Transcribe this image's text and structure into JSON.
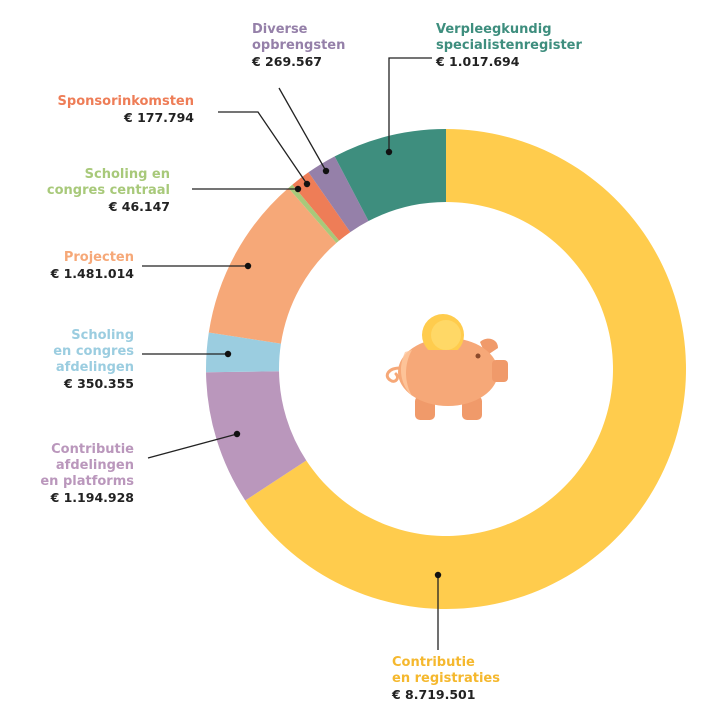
{
  "chart_data": {
    "type": "pie",
    "donut": true,
    "title": "",
    "legend": "callout-labels",
    "slices": [
      {
        "label_lines": [
          "Contributie",
          "en registraties"
        ],
        "value_text": "€ 8.719.501",
        "value": 8719501,
        "color": "#FFCC4D"
      },
      {
        "label_lines": [
          "Contributie",
          "afdelingen",
          "en platforms"
        ],
        "value_text": "€ 1.194.928",
        "value": 1194928,
        "color": "#BA97BC"
      },
      {
        "label_lines": [
          "Scholing",
          "en congres",
          "afdelingen"
        ],
        "value_text": "€ 350.355",
        "value": 350355,
        "color": "#9BCDE0"
      },
      {
        "label_lines": [
          "Projecten"
        ],
        "value_text": "€ 1.481.014",
        "value": 1481014,
        "color": "#F6A878"
      },
      {
        "label_lines": [
          "Scholing en",
          "congres centraal"
        ],
        "value_text": "€ 46.147",
        "value": 46147,
        "color": "#A8C97A"
      },
      {
        "label_lines": [
          "Sponsorinkomsten"
        ],
        "value_text": "€ 177.794",
        "value": 177794,
        "color": "#EE7D57"
      },
      {
        "label_lines": [
          "Diverse",
          "opbrengsten"
        ],
        "value_text": "€ 269.567",
        "value": 269567,
        "color": "#9580A9"
      },
      {
        "label_lines": [
          "Verpleegkundig",
          "specialistenregister"
        ],
        "value_text": "€ 1.017.694",
        "value": 1017694,
        "color": "#3E8E7E"
      }
    ],
    "center_icon": "piggy-bank-icon"
  }
}
